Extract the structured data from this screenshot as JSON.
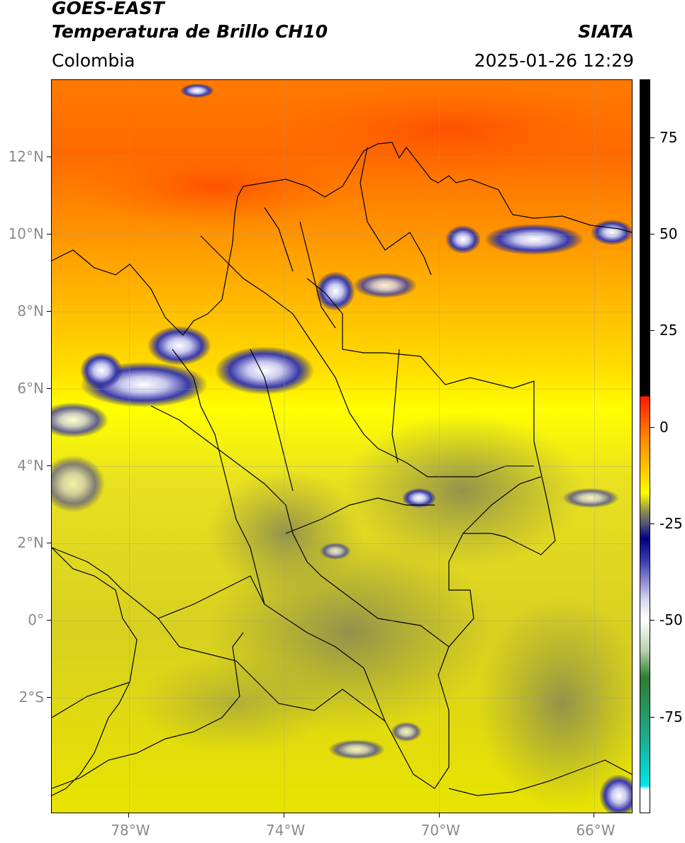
{
  "header": {
    "title_line1": "GOES-EAST",
    "title_line2": "Temperatura de Brillo CH10",
    "agency": "SIATA",
    "region": "Colombia",
    "timestamp": "2025-01-26 12:29"
  },
  "map": {
    "lat_labels": [
      {
        "label": "12°N",
        "lat": 12
      },
      {
        "label": "10°N",
        "lat": 10
      },
      {
        "label": "8°N",
        "lat": 8
      },
      {
        "label": "6°N",
        "lat": 6
      },
      {
        "label": "4°N",
        "lat": 4
      },
      {
        "label": "2°N",
        "lat": 2
      },
      {
        "label": "0°",
        "lat": 0
      },
      {
        "label": "2°S",
        "lat": -2
      }
    ],
    "lon_labels": [
      {
        "label": "78°W",
        "lon": -78
      },
      {
        "label": "74°W",
        "lon": -74
      },
      {
        "label": "70°W",
        "lon": -70
      },
      {
        "label": "66°W",
        "lon": -66
      }
    ],
    "extent": {
      "lon_min": -80,
      "lon_max": -65,
      "lat_min": -5,
      "lat_max": 14
    },
    "gridlines": true
  },
  "colorbar": {
    "min": -100,
    "max": 90,
    "ticks": [
      {
        "label": "75",
        "value": 75
      },
      {
        "label": "50",
        "value": 50
      },
      {
        "label": "25",
        "value": 25
      },
      {
        "label": "0",
        "value": 0
      },
      {
        "label": "-25",
        "value": -25
      },
      {
        "label": "-50",
        "value": -50
      },
      {
        "label": "-75",
        "value": -75
      }
    ],
    "stops": [
      {
        "value": 90,
        "color": "#000000"
      },
      {
        "value": 8,
        "color": "#000000"
      },
      {
        "value": 7.9,
        "color": "#ff1a00"
      },
      {
        "value": -3,
        "color": "#ff8800"
      },
      {
        "value": -12,
        "color": "#ffd000"
      },
      {
        "value": -17,
        "color": "#ffff00"
      },
      {
        "value": -22,
        "color": "#8a8a4a"
      },
      {
        "value": -25,
        "color": "#555577"
      },
      {
        "value": -29,
        "color": "#000080"
      },
      {
        "value": -35,
        "color": "#4040b0"
      },
      {
        "value": -45,
        "color": "#d8d8f0"
      },
      {
        "value": -50,
        "color": "#ffffff"
      },
      {
        "value": -58,
        "color": "#b8d0b0"
      },
      {
        "value": -65,
        "color": "#2e7d2e"
      },
      {
        "value": -80,
        "color": "#1fa98a"
      },
      {
        "value": -93,
        "color": "#00e5e5"
      },
      {
        "value": -94,
        "color": "#ffffff"
      },
      {
        "value": -100,
        "color": "#ffffff"
      }
    ]
  }
}
